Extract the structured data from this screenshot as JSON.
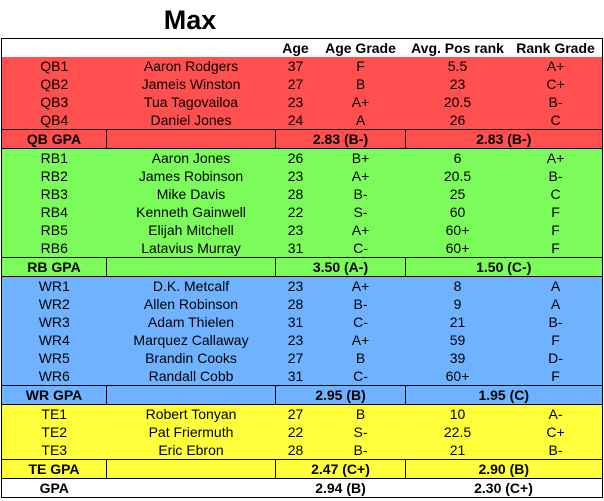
{
  "title": "Max",
  "headers": [
    "",
    "",
    "Age",
    "Age Grade",
    "Avg. Pos rank",
    "Rank Grade"
  ],
  "groups": [
    {
      "key": "qb",
      "color": "#ff4f4f",
      "rows": [
        [
          "QB1",
          "Aaron Rodgers",
          "37",
          "F",
          "5.5",
          "A+"
        ],
        [
          "QB2",
          "Jameis Winston",
          "27",
          "B",
          "23",
          "C+"
        ],
        [
          "QB3",
          "Tua Tagovailoa",
          "23",
          "A+",
          "20.5",
          "B-"
        ],
        [
          "QB4",
          "Daniel Jones",
          "24",
          "A",
          "26",
          "C"
        ]
      ],
      "gpa_label": "QB GPA",
      "age_gpa": "2.83 (B-)",
      "rank_gpa": "2.83 (B-)"
    },
    {
      "key": "rb",
      "color": "#7cfc5a",
      "rows": [
        [
          "RB1",
          "Aaron Jones",
          "26",
          "B+",
          "6",
          "A+"
        ],
        [
          "RB2",
          "James Robinson",
          "23",
          "A+",
          "20.5",
          "B-"
        ],
        [
          "RB3",
          "Mike Davis",
          "28",
          "B-",
          "25",
          "C"
        ],
        [
          "RB4",
          "Kenneth Gainwell",
          "22",
          "S-",
          "60",
          "F"
        ],
        [
          "RB5",
          "Elijah Mitchell",
          "23",
          "A+",
          "60+",
          "F"
        ],
        [
          "RB6",
          "Latavius Murray",
          "31",
          "C-",
          "60+",
          "F"
        ]
      ],
      "gpa_label": "RB GPA",
      "age_gpa": "3.50 (A-)",
      "rank_gpa": "1.50 (C-)"
    },
    {
      "key": "wr",
      "color": "#6fb2ff",
      "rows": [
        [
          "WR1",
          "D.K. Metcalf",
          "23",
          "A+",
          "8",
          "A"
        ],
        [
          "WR2",
          "Allen Robinson",
          "28",
          "B-",
          "9",
          "A"
        ],
        [
          "WR3",
          "Adam Thielen",
          "31",
          "C-",
          "21",
          "B-"
        ],
        [
          "WR4",
          "Marquez Callaway",
          "23",
          "A+",
          "59",
          "F"
        ],
        [
          "WR5",
          "Brandin Cooks",
          "27",
          "B",
          "39",
          "D-"
        ],
        [
          "WR6",
          "Randall Cobb",
          "31",
          "C-",
          "60+",
          "F"
        ]
      ],
      "gpa_label": "WR GPA",
      "age_gpa": "2.95 (B)",
      "rank_gpa": "1.95 (C)"
    },
    {
      "key": "te",
      "color": "#ffff3c",
      "rows": [
        [
          "TE1",
          "Robert Tonyan",
          "27",
          "B",
          "10",
          "A-"
        ],
        [
          "TE2",
          "Pat Friermuth",
          "22",
          "S-",
          "22.5",
          "C+"
        ],
        [
          "TE3",
          "Eric Ebron",
          "28",
          "B-",
          "21",
          "B-"
        ]
      ],
      "gpa_label": "TE GPA",
      "age_gpa": "2.47 (C+)",
      "rank_gpa": "2.90 (B)"
    }
  ],
  "total": {
    "label": "GPA",
    "age_gpa": "2.94 (B)",
    "rank_gpa": "2.30 (C+)"
  }
}
